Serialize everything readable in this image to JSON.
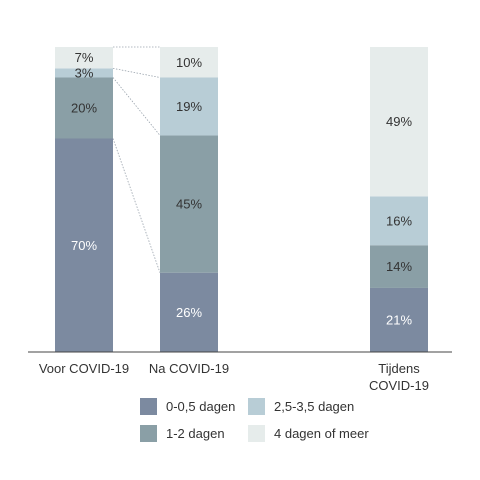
{
  "chart_data": {
    "type": "bar",
    "stacked": true,
    "percent": true,
    "ylim": [
      0,
      100
    ],
    "grid": false,
    "legend_position": "bottom",
    "categories": [
      "Voor COVID-19",
      "Na COVID-19",
      "Tijdens COVID-19"
    ],
    "category_lines": [
      [
        "Voor COVID-19"
      ],
      [
        "Na COVID-19"
      ],
      [
        "Tijdens",
        "COVID-19"
      ]
    ],
    "series": [
      {
        "name": "0-0,5 dagen",
        "color": "#7c8aa0",
        "values": [
          70,
          26,
          21
        ],
        "labels": [
          "70%",
          "26%",
          "21%"
        ]
      },
      {
        "name": "1-2 dagen",
        "color": "#8a9fa6",
        "values": [
          20,
          45,
          14
        ],
        "labels": [
          "20%",
          "45%",
          "14%"
        ]
      },
      {
        "name": "2,5-3,5 dagen",
        "color": "#b8cdd6",
        "values": [
          3,
          19,
          16
        ],
        "labels": [
          "3%",
          "19%",
          "16%"
        ]
      },
      {
        "name": "4 dagen of meer",
        "color": "#e6eceb",
        "values": [
          7,
          10,
          49
        ],
        "labels": [
          "7%",
          "10%",
          "49%"
        ]
      }
    ],
    "connectors": {
      "from": "Voor COVID-19",
      "to": "Na COVID-19",
      "style": "dotted"
    }
  }
}
